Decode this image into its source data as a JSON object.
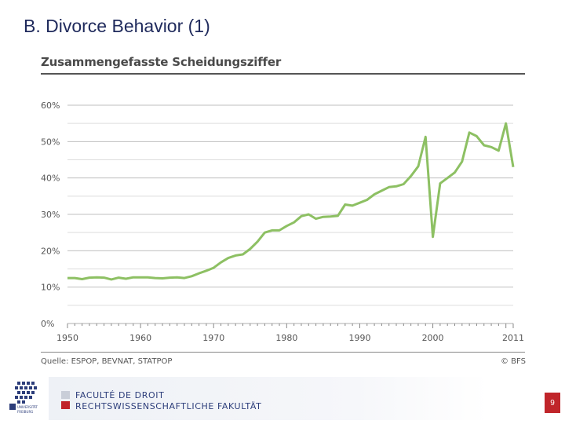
{
  "slide": {
    "title": "B. Divorce Behavior (1)",
    "page_number": "9"
  },
  "chart_data": {
    "type": "line",
    "title": "Zusammengefasste Scheidungsziffer",
    "xlabel": "",
    "ylabel": "",
    "xlim": [
      1950,
      2011
    ],
    "ylim": [
      0,
      60
    ],
    "x_ticks": [
      "1950",
      "1960",
      "1970",
      "1980",
      "1990",
      "2000",
      "2011"
    ],
    "y_ticks": [
      "0%",
      "10%",
      "20%",
      "30%",
      "40%",
      "50%",
      "60%"
    ],
    "grid": true,
    "line_color": "#8dc063",
    "series": [
      {
        "x": [
          1950,
          1951,
          1952,
          1953,
          1954,
          1955,
          1956,
          1957,
          1958,
          1959,
          1960,
          1961,
          1962,
          1963,
          1964,
          1965,
          1966,
          1967,
          1968,
          1969,
          1970,
          1971,
          1972,
          1973,
          1974,
          1975,
          1976,
          1977,
          1978,
          1979,
          1980,
          1981,
          1982,
          1983,
          1984,
          1985,
          1986,
          1987,
          1988,
          1989,
          1990,
          1991,
          1992,
          1993,
          1994,
          1995,
          1996,
          1997,
          1998,
          1999,
          2000,
          2001,
          2002,
          2003,
          2004,
          2005,
          2006,
          2007,
          2008,
          2009,
          2010,
          2011
        ],
        "values": [
          12.5,
          12.5,
          12.2,
          12.6,
          12.7,
          12.6,
          12.1,
          12.6,
          12.3,
          12.7,
          12.7,
          12.7,
          12.5,
          12.4,
          12.6,
          12.7,
          12.5,
          13.0,
          13.8,
          14.5,
          15.3,
          16.8,
          18.0,
          18.7,
          19.0,
          20.5,
          22.5,
          25.0,
          25.6,
          25.6,
          26.8,
          27.8,
          29.5,
          30.0,
          28.8,
          29.3,
          29.4,
          29.6,
          32.7,
          32.4,
          33.2,
          34.0,
          35.5,
          36.5,
          37.5,
          37.7,
          38.3,
          40.5,
          43.2,
          51.3,
          23.8,
          38.5,
          40.0,
          41.5,
          44.5,
          52.5,
          51.5,
          49.0,
          48.5,
          47.5,
          55.0,
          43.0
        ]
      }
    ],
    "source": "Quelle: ESPOP, BEVNAT, STATPOP",
    "copyright": "© BFS"
  },
  "footer": {
    "line1": "FACULTÉ DE DROIT",
    "line2": "RECHTSWISSENSCHAFTLICHE FAKULTÄT",
    "logo_text": "UNIVERSITÄT FREIBURG"
  }
}
